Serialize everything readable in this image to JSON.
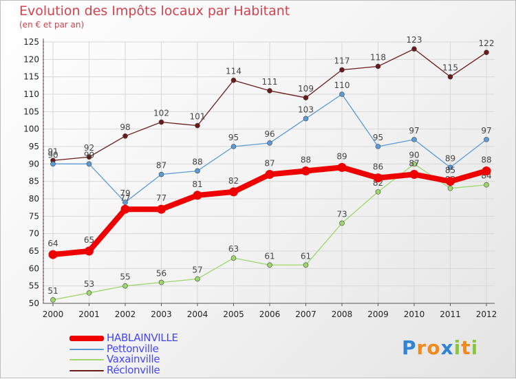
{
  "header": {
    "title": "Evolution des Impôts locaux par Habitant",
    "subtitle": "(en € et par an)"
  },
  "logo": {
    "letters": [
      "P",
      "r",
      "o",
      "x",
      "i",
      "t",
      "i"
    ],
    "colors": [
      "#2f84d6",
      "#f08a1c",
      "#f08a1c",
      "#2f84d6",
      "#8cc63f",
      "#f08a1c",
      "#8cc63f"
    ]
  },
  "chart_data": {
    "type": "line",
    "title": "Evolution des Impôts locaux par Habitant",
    "subtitle": "(en € et par an)",
    "xlabel": "",
    "ylabel": "",
    "x": [
      2000,
      2001,
      2002,
      2003,
      2004,
      2005,
      2006,
      2007,
      2008,
      2009,
      2010,
      2011,
      2012
    ],
    "ylim": [
      50,
      125
    ],
    "yticks": [
      50,
      55,
      60,
      65,
      70,
      75,
      80,
      85,
      90,
      95,
      100,
      105,
      110,
      115,
      120,
      125
    ],
    "grid": true,
    "legend_position": "bottom-left",
    "series": [
      {
        "name": "Réclonville",
        "color": "#6b1a1a",
        "values": [
          91,
          92,
          98,
          102,
          101,
          114,
          111,
          109,
          117,
          118,
          123,
          115,
          122
        ]
      },
      {
        "name": "Pettonville",
        "color": "#5b9bd5",
        "values": [
          90,
          90,
          79,
          87,
          88,
          95,
          96,
          103,
          110,
          95,
          97,
          89,
          97
        ]
      },
      {
        "name": "Vaxainville",
        "color": "#9dd76b",
        "values": [
          51,
          53,
          55,
          56,
          57,
          63,
          61,
          61,
          73,
          82,
          90,
          83,
          84
        ]
      },
      {
        "name": "HABLAINVILLE",
        "color": "#ee0000",
        "values": [
          64,
          65,
          77,
          77,
          81,
          82,
          87,
          88,
          89,
          86,
          87,
          85,
          88
        ]
      }
    ],
    "legend_order": [
      "HABLAINVILLE",
      "Pettonville",
      "Vaxainville",
      "Réclonville"
    ]
  }
}
